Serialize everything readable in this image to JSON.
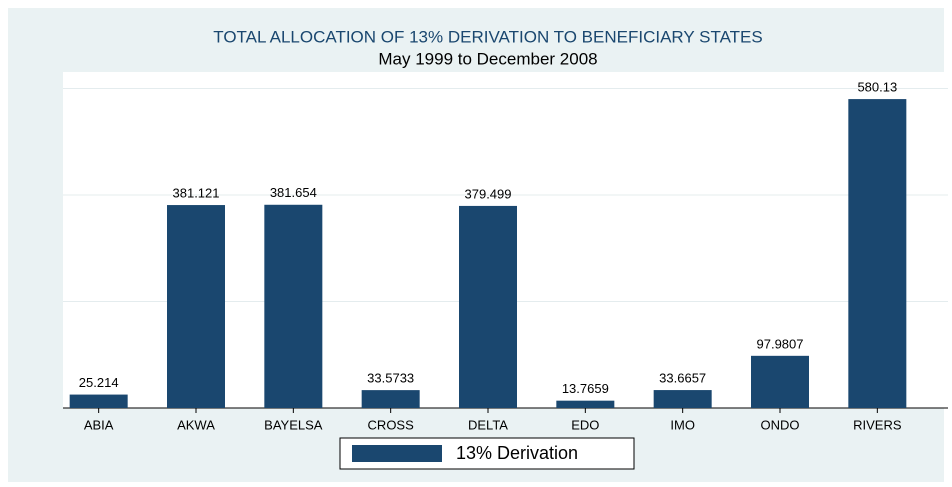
{
  "chart_data": {
    "type": "bar",
    "title": "TOTAL ALLOCATION OF 13% DERIVATION TO BENEFICIARY STATES",
    "subtitle": "May 1999 to December 2008",
    "categories": [
      "ABIA",
      "AKWA",
      "BAYELSA",
      "CROSS",
      "DELTA",
      "EDO",
      "IMO",
      "ONDO",
      "RIVERS"
    ],
    "series": [
      {
        "name": "13% Derivation",
        "color": "#1a476f",
        "values": [
          25.214,
          381.121,
          381.654,
          33.5733,
          379.499,
          13.7659,
          33.6657,
          97.9807,
          580.13
        ]
      }
    ],
    "ylim": [
      0,
      631
    ],
    "yticks": [
      0,
      200,
      400,
      600
    ],
    "grid": true,
    "legend": "bottom"
  }
}
